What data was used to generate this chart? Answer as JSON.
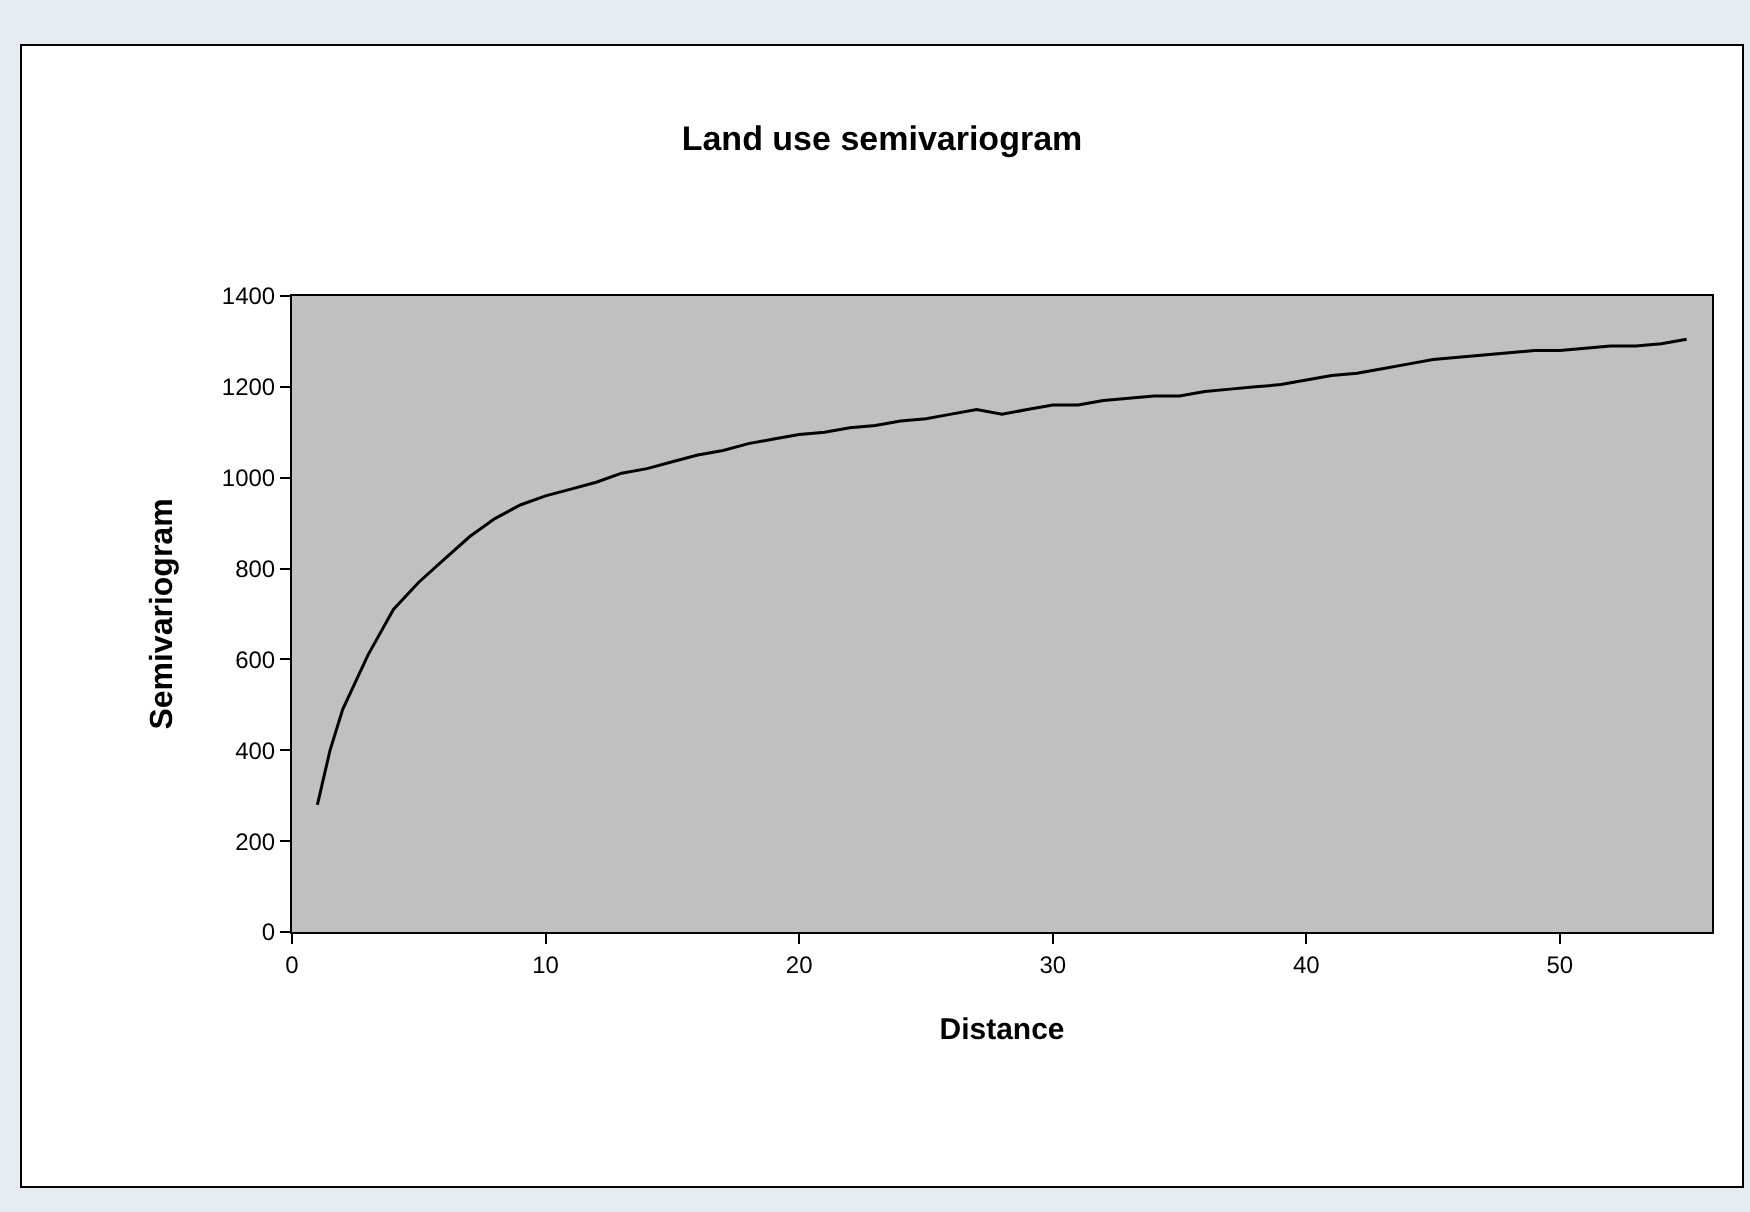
{
  "chart_data": {
    "type": "line",
    "title": "Land use semivariogram",
    "xlabel": "Distance",
    "ylabel": "Semivariogram",
    "x": [
      1,
      1.5,
      2,
      3,
      4,
      5,
      6,
      7,
      8,
      9,
      10,
      11,
      12,
      13,
      14,
      15,
      16,
      17,
      18,
      19,
      20,
      21,
      22,
      23,
      24,
      25,
      26,
      27,
      28,
      29,
      30,
      31,
      32,
      33,
      34,
      35,
      36,
      37,
      38,
      39,
      40,
      41,
      42,
      43,
      44,
      45,
      46,
      47,
      48,
      49,
      50,
      51,
      52,
      53,
      54,
      55
    ],
    "series": [
      {
        "color": "#000000",
        "values": [
          280,
          400,
          490,
          610,
          710,
          770,
          820,
          870,
          910,
          940,
          960,
          975,
          990,
          1010,
          1020,
          1035,
          1050,
          1060,
          1075,
          1085,
          1095,
          1100,
          1110,
          1115,
          1125,
          1130,
          1140,
          1150,
          1140,
          1150,
          1160,
          1160,
          1170,
          1175,
          1180,
          1180,
          1190,
          1195,
          1200,
          1205,
          1215,
          1225,
          1230,
          1240,
          1250,
          1260,
          1265,
          1270,
          1275,
          1280,
          1280,
          1285,
          1290,
          1290,
          1295,
          1305
        ]
      }
    ],
    "xlim": [
      0,
      56
    ],
    "xticks": [
      0,
      10,
      20,
      30,
      40,
      50
    ],
    "ylim": [
      0,
      1400
    ],
    "yticks": [
      0,
      200,
      400,
      600,
      800,
      1000,
      1200,
      1400
    ],
    "grid": false,
    "marker": "none",
    "line_style": "solid"
  }
}
